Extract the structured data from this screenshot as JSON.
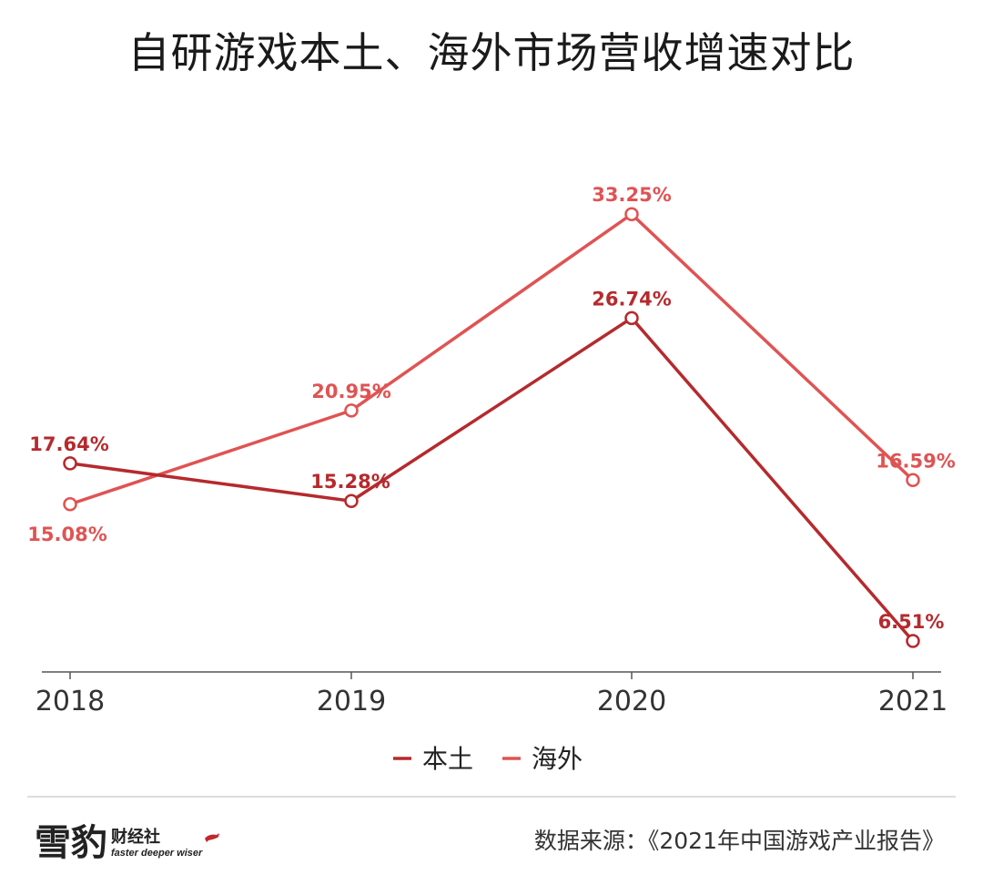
{
  "title": "自研游戏本土、海外市场营收增速对比",
  "colors": {
    "domestic": "#b52a2d",
    "overseas": "#e05353",
    "axis": "#333333",
    "background": "#ffffff"
  },
  "chart_data": {
    "type": "line",
    "categories": [
      "2018",
      "2019",
      "2020",
      "2021"
    ],
    "series": [
      {
        "name": "本土",
        "values": [
          17.64,
          15.28,
          26.74,
          6.51
        ],
        "labels": [
          "17.64%",
          "15.28%",
          "26.74%",
          "6.51%"
        ],
        "color": "#b52a2d"
      },
      {
        "name": "海外",
        "values": [
          15.08,
          20.95,
          33.25,
          16.59
        ],
        "labels": [
          "15.08%",
          "20.95%",
          "33.25%",
          "16.59%"
        ],
        "color": "#e05353"
      }
    ],
    "title": "自研游戏本土、海外市场营收增速对比",
    "xlabel": "",
    "ylabel": "",
    "ylim": [
      4,
      36
    ],
    "grid": false,
    "legend": "bottom",
    "marker": "hollow-circle"
  },
  "footer": {
    "logo_text": "雪豹",
    "logo_subtext": "财经社",
    "logo_tagline": "faster deeper wiser",
    "source": "数据来源：《2021年中国游戏产业报告》"
  }
}
